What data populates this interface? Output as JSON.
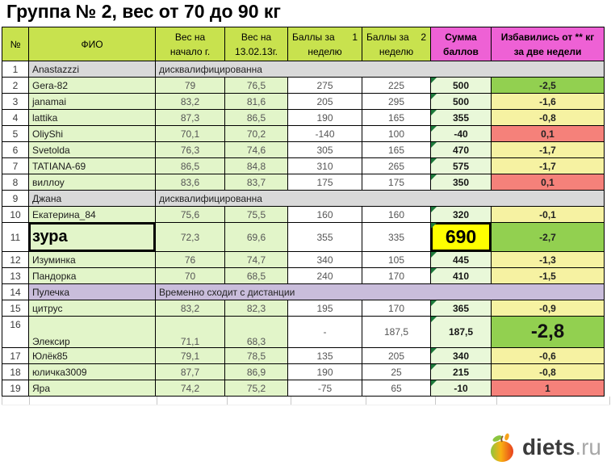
{
  "title": "Группа № 2, вес от 70 до 90 кг",
  "colors": {
    "header_green": "#c8e24e",
    "header_magenta": "#ee61d5",
    "cell_green": "#e2f5c9",
    "sum_green": "#e9f8d9",
    "result_green": "#92d050",
    "result_yellow": "#f6f2a2",
    "result_red": "#f5817a",
    "disqualified_gray": "#d9d9d9",
    "withdrawn_lavender": "#c9bddb",
    "highlight_yellow": "#ffff00",
    "comment_triangle": "#1e7a3c"
  },
  "table": {
    "headers": [
      {
        "id": "num",
        "line1": "№",
        "bg": "green"
      },
      {
        "id": "fio",
        "line1": "ФИО",
        "bg": "green"
      },
      {
        "id": "w1",
        "line1": "Вес на",
        "line2": "начало г.",
        "bg": "green"
      },
      {
        "id": "w2",
        "line1": "Вес на",
        "line2": "13.02.13г.",
        "bg": "green"
      },
      {
        "id": "p1",
        "line1": "Баллы за",
        "corner": "1",
        "line2": "неделю",
        "bg": "green"
      },
      {
        "id": "p2",
        "line1": "Баллы за",
        "corner": "2",
        "line2": "неделю",
        "bg": "green"
      },
      {
        "id": "sum",
        "line1": "Сумма",
        "line2": "баллов",
        "bg": "magenta",
        "bold": true
      },
      {
        "id": "result",
        "line1": "Избавились от ** кг",
        "line2": "за две недели",
        "bg": "magenta",
        "bold": true
      }
    ],
    "rows": [
      {
        "num": "1",
        "name": "Anastazzzi",
        "note": "дисквалифицированна",
        "status_bg": "gray"
      },
      {
        "num": "2",
        "name": "Gera-82",
        "w1": "79",
        "w2": "76,5",
        "p1": "275",
        "p2": "225",
        "sum": "500",
        "result": "-2,5",
        "result_bg": "green"
      },
      {
        "num": "3",
        "name": "janamai",
        "w1": "83,2",
        "w2": "81,6",
        "p1": "205",
        "p2": "295",
        "sum": "500",
        "result": "-1,6",
        "result_bg": "yellow"
      },
      {
        "num": "4",
        "name": "lattika",
        "w1": "87,3",
        "w2": "86,5",
        "p1": "190",
        "p2": "165",
        "sum": "355",
        "result": "-0,8",
        "result_bg": "yellow"
      },
      {
        "num": "5",
        "name": "OliyShi",
        "w1": "70,1",
        "w2": "70,2",
        "p1": "-140",
        "p2": "100",
        "sum": "-40",
        "result": "0,1",
        "result_bg": "red"
      },
      {
        "num": "6",
        "name": "Svetolda",
        "w1": "76,3",
        "w2": "74,6",
        "p1": "305",
        "p2": "165",
        "sum": "470",
        "result": "-1,7",
        "result_bg": "yellow"
      },
      {
        "num": "7",
        "name": "TATIANA-69",
        "w1": "86,5",
        "w2": "84,8",
        "p1": "310",
        "p2": "265",
        "sum": "575",
        "result": "-1,7",
        "result_bg": "yellow"
      },
      {
        "num": "8",
        "name": "виллоу",
        "w1": "83,6",
        "w2": "83,7",
        "p1": "175",
        "p2": "175",
        "sum": "350",
        "result": "0,1",
        "result_bg": "red"
      },
      {
        "num": "9",
        "name": "Джана",
        "note": "дисквалифицированна",
        "status_bg": "gray"
      },
      {
        "num": "10",
        "name": "Екатерина_84",
        "w1": "75,6",
        "w2": "75,5",
        "p1": "160",
        "p2": "160",
        "sum": "320",
        "result": "-0,1",
        "result_bg": "yellow"
      },
      {
        "num": "11",
        "name": "зура",
        "w1": "72,3",
        "w2": "69,6",
        "p1": "355",
        "p2": "335",
        "sum": "690",
        "result": "-2,7",
        "result_bg": "green",
        "tall": true,
        "name_selected": true,
        "sum_selected": true
      },
      {
        "num": "12",
        "name": "Изуминка",
        "w1": "76",
        "w2": "74,7",
        "p1": "340",
        "p2": "105",
        "sum": "445",
        "result": "-1,3",
        "result_bg": "yellow"
      },
      {
        "num": "13",
        "name": "Пандорка",
        "w1": "70",
        "w2": "68,5",
        "p1": "240",
        "p2": "170",
        "sum": "410",
        "result": "-1,5",
        "result_bg": "yellow"
      },
      {
        "num": "14",
        "name": "Пулечка",
        "note": "Временно сходит с дистанции",
        "status_bg": "lav"
      },
      {
        "num": "15",
        "name": "цитрус",
        "w1": "83,2",
        "w2": "82,3",
        "p1": "195",
        "p2": "170",
        "sum": "365",
        "result": "-0,9",
        "result_bg": "yellow"
      },
      {
        "num": "16",
        "name": "Элексир",
        "w1": "71,1",
        "w2": "68,3",
        "p1": "-",
        "p2": "187,5",
        "sum": "187,5",
        "result": "-2,8",
        "result_bg": "green",
        "tall": true,
        "bottom_align": true,
        "result_big": true
      },
      {
        "num": "17",
        "name": "Юлёк85",
        "w1": "79,1",
        "w2": "78,5",
        "p1": "135",
        "p2": "205",
        "sum": "340",
        "result": "-0,6",
        "result_bg": "yellow"
      },
      {
        "num": "18",
        "name": "юличка3009",
        "w1": "87,7",
        "w2": "86,9",
        "p1": "190",
        "p2": "25",
        "sum": "215",
        "result": "-0,8",
        "result_bg": "yellow"
      },
      {
        "num": "19",
        "name": "Яра",
        "w1": "74,2",
        "w2": "75,2",
        "p1": "-75",
        "p2": "65",
        "sum": "-10",
        "result": "1",
        "result_bg": "red"
      }
    ]
  },
  "logo": {
    "text": "diets",
    "suffix": ".ru"
  }
}
